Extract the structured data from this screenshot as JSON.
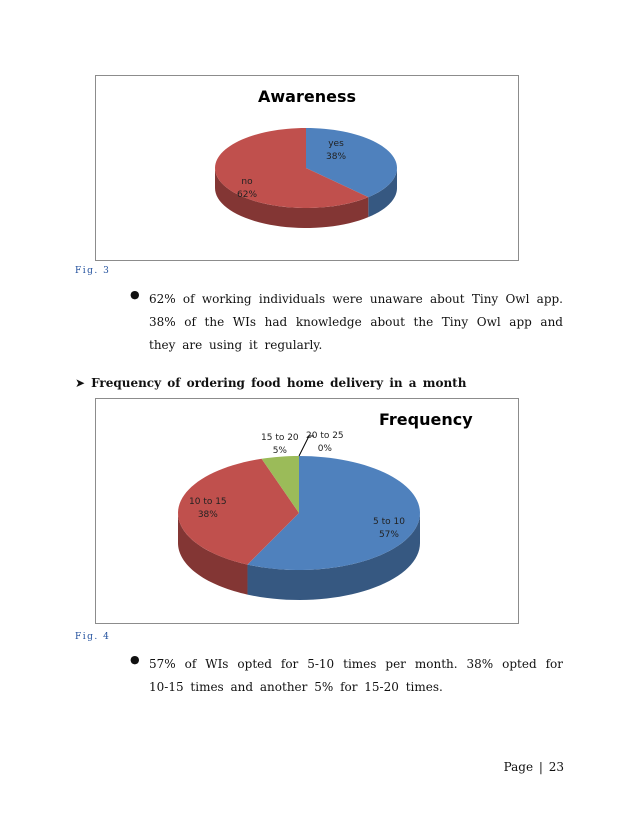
{
  "figures": [
    {
      "caption": "Fig. 3",
      "chart_data": {
        "type": "pie",
        "title": "Awareness",
        "categories": [
          "yes",
          "no"
        ],
        "values": [
          38,
          62
        ],
        "colors": [
          "#4f81bd",
          "#c0504d"
        ],
        "labels": [
          {
            "name": "yes",
            "pct": "38%"
          },
          {
            "name": "no",
            "pct": "62%"
          }
        ],
        "style": "3d",
        "legend": "none"
      }
    },
    {
      "caption": "Fig. 4",
      "chart_data": {
        "type": "pie",
        "title": "Frequency",
        "categories": [
          "5 to 10",
          "10 to 15",
          "15 to 20",
          "20 to 25"
        ],
        "values": [
          57,
          38,
          5,
          0
        ],
        "colors": [
          "#4f81bd",
          "#c0504d",
          "#9bbb59",
          "#8064a2"
        ],
        "labels": [
          {
            "name": "5 to 10",
            "pct": "57%"
          },
          {
            "name": "10 to 15",
            "pct": "38%"
          },
          {
            "name": "15 to 20",
            "pct": "5%"
          },
          {
            "name": "20 to 25",
            "pct": "0%"
          }
        ],
        "style": "3d",
        "legend": "none"
      }
    }
  ],
  "bullets": [
    "62% of working individuals were unaware about Tiny Owl app. 38% of the WIs had knowledge about the Tiny Owl app and they are using it regularly.",
    "57% of WIs opted for 5-10 times per month. 38% opted for 10-15 times and another 5% for 15-20 times."
  ],
  "section_heading": "Frequency of ordering food home delivery in a month",
  "page_number": "Page | 23"
}
